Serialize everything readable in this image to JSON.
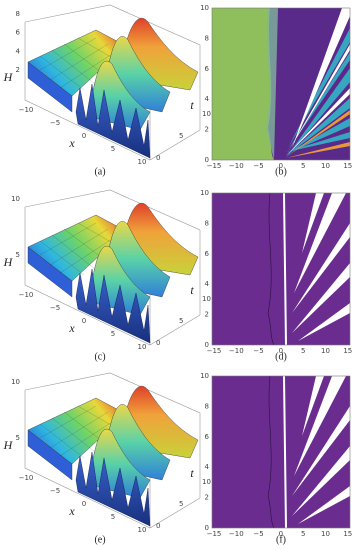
{
  "panels": [
    {
      "plot3d": {
        "label": "(a)",
        "zlabel": "H",
        "xlabel": "x",
        "tlabel": "t",
        "zticks": [
          "8",
          "6",
          "4",
          "2"
        ],
        "xticks": [
          "−10",
          "−5",
          "0",
          "5",
          "10"
        ],
        "tticks": [
          "0",
          "5",
          "10"
        ]
      },
      "contour": {
        "label": "(b)",
        "yticks": [
          "0",
          "2",
          "4",
          "6",
          "8",
          "10"
        ],
        "xticks": [
          "−15",
          "−10",
          "−5",
          "0",
          "5",
          "10",
          "15"
        ]
      }
    },
    {
      "plot3d": {
        "label": "(c)",
        "zlabel": "H",
        "xlabel": "x",
        "tlabel": "t",
        "zticks": [
          "10",
          "5"
        ],
        "xticks": [
          "−10",
          "−5",
          "0",
          "5",
          "10"
        ],
        "tticks": [
          "0",
          "5",
          "10"
        ]
      },
      "contour": {
        "label": "(d)",
        "yticks": [
          "0",
          "2",
          "4",
          "6",
          "8",
          "10"
        ],
        "xticks": [
          "−15",
          "−10",
          "−5",
          "0",
          "5",
          "10",
          "15"
        ]
      }
    },
    {
      "plot3d": {
        "label": "(e)",
        "zlabel": "H",
        "xlabel": "x",
        "tlabel": "t",
        "zticks": [
          "10",
          "5"
        ],
        "xticks": [
          "−10",
          "−5",
          "0",
          "5",
          "10"
        ],
        "tticks": [
          "0",
          "5",
          "10"
        ]
      },
      "contour": {
        "label": "(f)",
        "yticks": [
          "0",
          "2",
          "4",
          "6",
          "8",
          "10"
        ],
        "xticks": [
          "−15",
          "−10",
          "−5",
          "0",
          "5",
          "10",
          "15"
        ]
      }
    }
  ]
}
